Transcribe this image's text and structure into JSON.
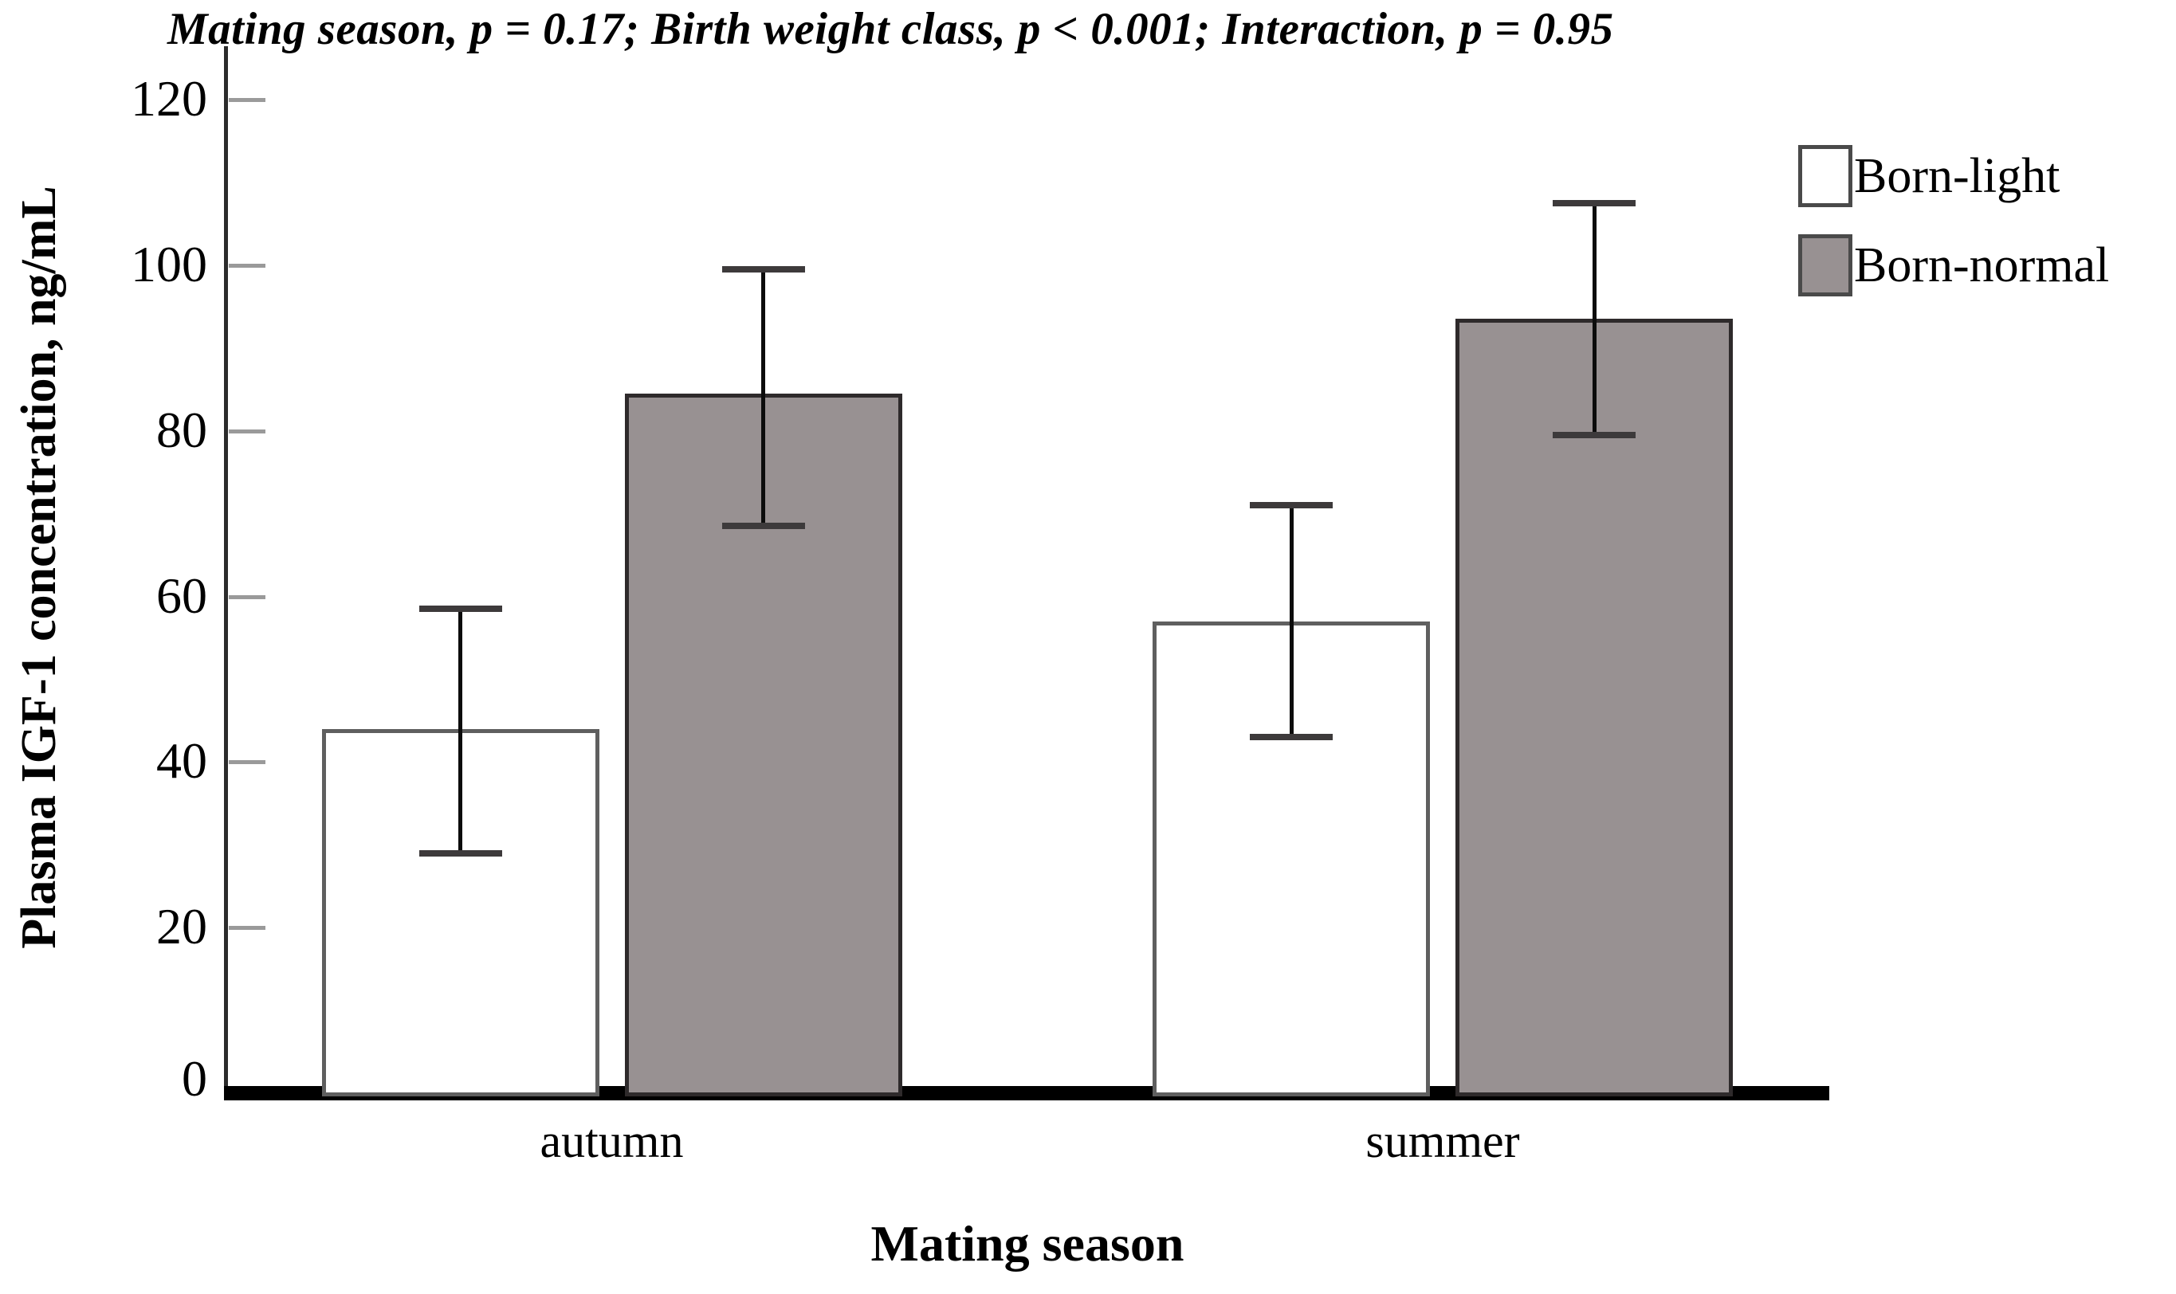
{
  "chart_data": {
    "type": "bar",
    "title": "Mating season, p = 0.17; Birth weight class, p < 0.001; Interaction, p = 0.95",
    "xlabel": "Mating season",
    "ylabel": "Plasma IGF-1 concentration, ng/mL",
    "categories": [
      "autumn",
      "summer"
    ],
    "series": [
      {
        "name": "Born-light",
        "fill": "#ffffff",
        "border": "#5f5f5f",
        "values": [
          44,
          57
        ],
        "error_low": [
          29,
          43
        ],
        "error_high": [
          58.5,
          71
        ]
      },
      {
        "name": "Born-normal",
        "fill": "#989192",
        "border": "#2e2a2b",
        "values": [
          84.5,
          93.5
        ],
        "error_low": [
          68.5,
          79.5
        ],
        "error_high": [
          99.5,
          107.5
        ]
      }
    ],
    "yticks": [
      0,
      20,
      40,
      60,
      80,
      100,
      120
    ],
    "ylim": [
      0,
      126
    ],
    "grid": false,
    "legend_position": "top-right",
    "colors": {
      "axis": "#2b2b2b",
      "tick": "#9a9a9a",
      "error_bar": "#0c0c0c",
      "text": "#000000"
    }
  }
}
